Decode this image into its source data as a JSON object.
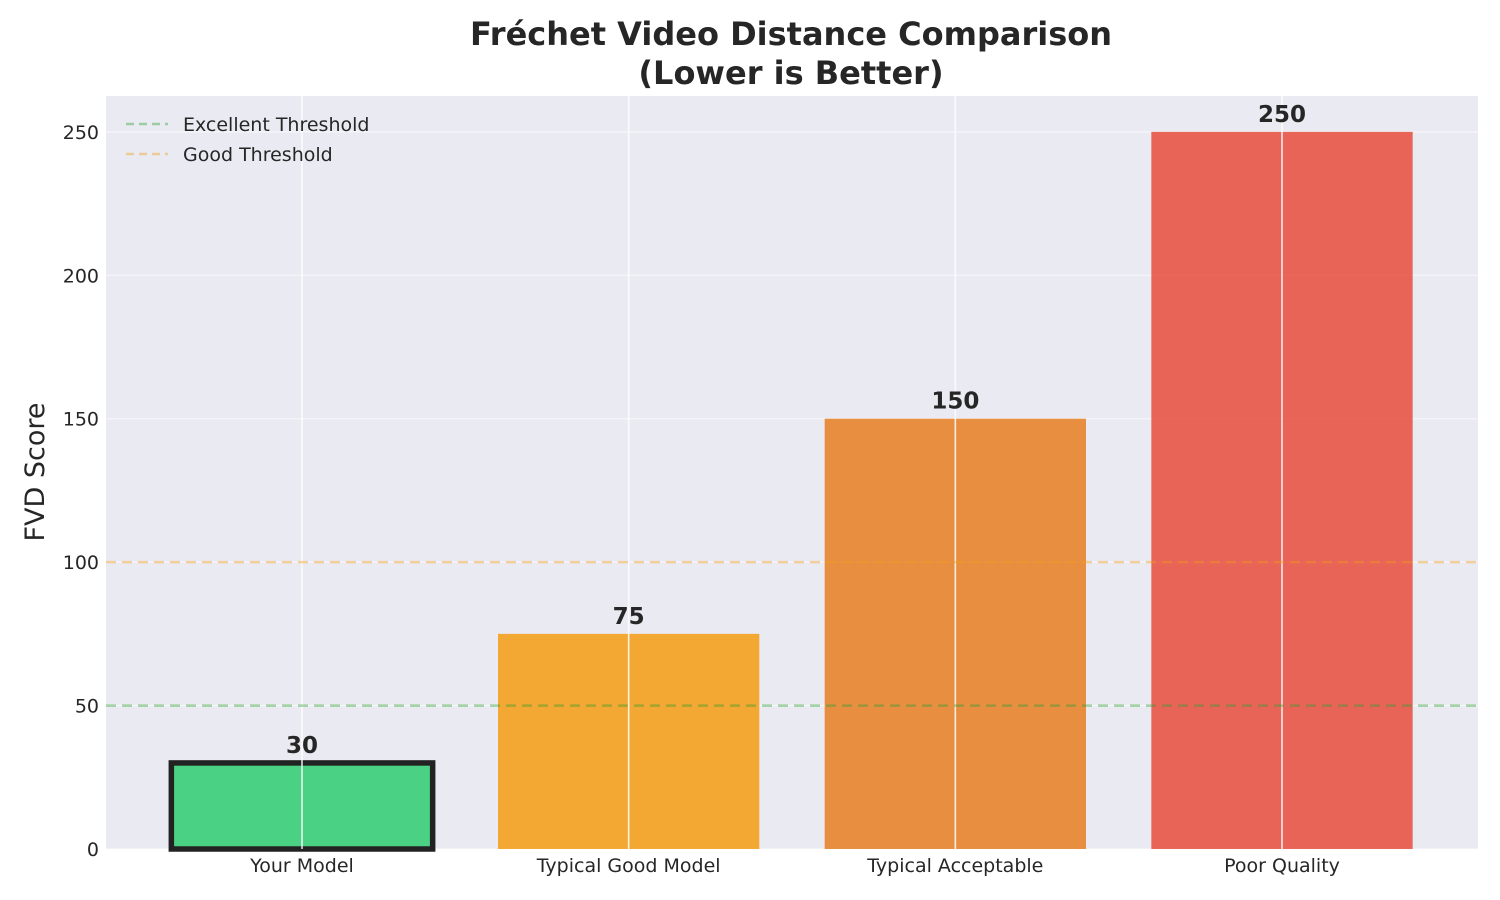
{
  "chart_data": {
    "type": "bar",
    "title_lines": [
      "Fréchet Video Distance Comparison",
      "(Lower is Better)"
    ],
    "xlabel": "",
    "ylabel": "FVD Score",
    "categories": [
      "Your Model",
      "Typical Good Model",
      "Typical Acceptable",
      "Poor Quality"
    ],
    "values": [
      30,
      75,
      150,
      250
    ],
    "bar_colors": [
      "#2ecc71",
      "#f39c12",
      "#e67e22",
      "#e74c3c"
    ],
    "highlight_index": 0,
    "ylim": [
      0,
      262.5
    ],
    "yticks": [
      0,
      50,
      100,
      150,
      200,
      250
    ],
    "grid": true,
    "reference_lines": [
      {
        "name": "Excellent Threshold",
        "value": 50,
        "color": "#2ca02c"
      },
      {
        "name": "Good Threshold",
        "value": 100,
        "color": "#f39c12"
      }
    ],
    "legend_position": "top-left"
  }
}
